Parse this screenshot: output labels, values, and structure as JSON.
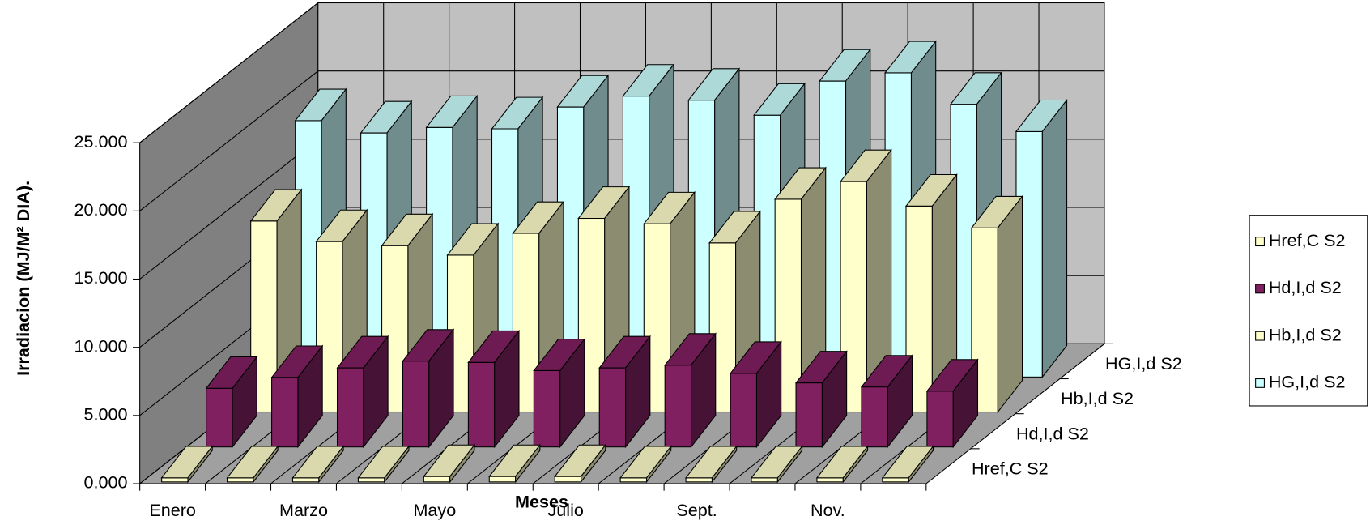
{
  "chart_data": {
    "type": "bar",
    "y_label": "Irradiacion (MJ/M² DIA).",
    "x_label": "Meses",
    "categories": [
      "Enero",
      null,
      "Marzo",
      null,
      "Mayo",
      null,
      "Julio",
      null,
      "Sept.",
      null,
      "Nov.",
      null
    ],
    "series": [
      {
        "name": "Href,C S2",
        "color": "#FFFFCC",
        "values": [
          0.3,
          0.3,
          0.3,
          0.3,
          0.4,
          0.4,
          0.4,
          0.3,
          0.3,
          0.3,
          0.3,
          0.3
        ]
      },
      {
        "name": "Hd,I,d S2",
        "color": "#802060",
        "values": [
          4.3,
          5.1,
          5.8,
          6.3,
          6.2,
          5.6,
          5.8,
          6.0,
          5.4,
          4.7,
          4.4,
          4.1
        ]
      },
      {
        "name": "Hb,I,d S2",
        "color": "#FFFFCC",
        "values": [
          14.0,
          12.5,
          12.2,
          11.5,
          13.1,
          14.2,
          13.8,
          12.4,
          15.6,
          16.9,
          15.1,
          13.5
        ]
      },
      {
        "name": "HG,I,d S2",
        "color": "#CCFFFF",
        "values": [
          18.8,
          17.9,
          18.3,
          18.2,
          19.8,
          20.6,
          20.3,
          19.2,
          21.7,
          22.3,
          20.0,
          18.0
        ]
      }
    ],
    "ylim": [
      0,
      25
    ],
    "yticks": [
      {
        "value": 0,
        "label": "0.000"
      },
      {
        "value": 5,
        "label": "5.000"
      },
      {
        "value": 10,
        "label": "10.000"
      },
      {
        "value": 15,
        "label": "15.000"
      },
      {
        "value": 20,
        "label": "20.000"
      },
      {
        "value": 25,
        "label": "25.000"
      }
    ],
    "grid": true,
    "legend": "right"
  }
}
